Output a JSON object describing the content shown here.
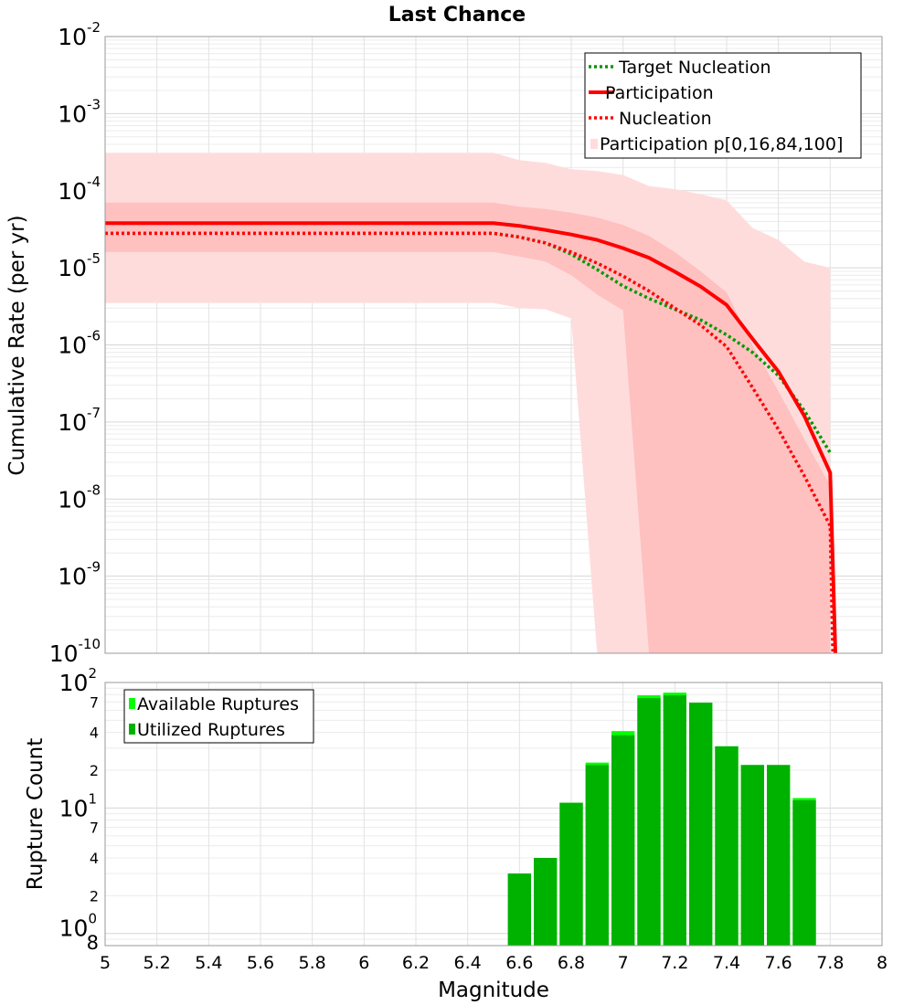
{
  "chart_data": [
    {
      "type": "line",
      "title": "Last Chance",
      "xlabel": "",
      "ylabel": "Cumulative Rate (per yr)",
      "xlim": [
        5,
        8
      ],
      "ylim": [
        1e-10,
        0.01
      ],
      "yscale": "log",
      "grid": true,
      "legend_position": "top-right",
      "y_tick_labels": [
        {
          "base": "10",
          "exp": "-2"
        },
        {
          "base": "10",
          "exp": "-3"
        },
        {
          "base": "10",
          "exp": "-4"
        },
        {
          "base": "10",
          "exp": "-5"
        },
        {
          "base": "10",
          "exp": "-6"
        },
        {
          "base": "10",
          "exp": "-7"
        },
        {
          "base": "10",
          "exp": "-8"
        },
        {
          "base": "10",
          "exp": "-9"
        },
        {
          "base": "10",
          "exp": "-10"
        }
      ],
      "legend": [
        "Target Nucleation",
        "Participation",
        "Nucleation",
        "Participation p[0,16,84,100]"
      ],
      "colors": {
        "target": "#009900",
        "participation": "#ff0000",
        "nucleation": "#ff0000",
        "band_outer": "#ffdcdc",
        "band_inner": "#ffc0c0"
      },
      "series": [
        {
          "name": "Target Nucleation",
          "style": "dotted",
          "x": [
            5.0,
            6.5,
            6.6,
            6.7,
            6.8,
            6.9,
            7.0,
            7.1,
            7.2,
            7.3,
            7.4,
            7.5,
            7.6,
            7.7,
            7.8
          ],
          "y": [
            2.8e-05,
            2.8e-05,
            2.5e-05,
            2.1e-05,
            1.5e-05,
            9.5e-06,
            5.8e-06,
            4e-06,
            2.9e-06,
            2.1e-06,
            1.35e-06,
            8e-07,
            4e-07,
            1.4e-07,
            4e-08
          ]
        },
        {
          "name": "Participation",
          "style": "solid",
          "x": [
            5.0,
            6.5,
            6.6,
            6.7,
            6.8,
            6.9,
            7.0,
            7.1,
            7.2,
            7.3,
            7.4,
            7.5,
            7.6,
            7.7,
            7.8,
            7.82
          ],
          "y": [
            3.8e-05,
            3.8e-05,
            3.5e-05,
            3.1e-05,
            2.7e-05,
            2.3e-05,
            1.8e-05,
            1.35e-05,
            8.9e-06,
            5.7e-06,
            3.3e-06,
            1.2e-06,
            4.5e-07,
            1.2e-07,
            2.2e-08,
            1e-10
          ]
        },
        {
          "name": "Nucleation",
          "style": "dotted",
          "x": [
            5.0,
            6.5,
            6.6,
            6.7,
            6.8,
            6.9,
            7.0,
            7.1,
            7.2,
            7.3,
            7.4,
            7.5,
            7.6,
            7.7,
            7.8,
            7.81
          ],
          "y": [
            2.8e-05,
            2.8e-05,
            2.5e-05,
            2.1e-05,
            1.6e-05,
            1.15e-05,
            7.8e-06,
            5e-06,
            3e-06,
            1.8e-06,
            9.5e-07,
            2.8e-07,
            8e-08,
            2e-08,
            4.5e-09,
            1e-10
          ]
        }
      ],
      "bands": [
        {
          "name": "Participation p[0,16,84,100]",
          "kind": "p0-p100",
          "x": [
            5.0,
            6.5,
            6.6,
            6.7,
            6.8,
            6.9,
            7.0,
            7.1,
            7.2,
            7.3,
            7.4,
            7.5,
            7.6,
            7.7,
            7.8
          ],
          "upper": [
            0.00031,
            0.00031,
            0.00025,
            0.00023,
            0.00019,
            0.00018,
            0.00016,
            0.000115,
            0.000105,
            9e-05,
            7.5e-05,
            3.3e-05,
            2.3e-05,
            1.2e-05,
            1e-05
          ],
          "lower": [
            3.5e-06,
            3.5e-06,
            3e-06,
            2.9e-06,
            2.2e-06,
            1e-10,
            1e-10,
            1e-10,
            1e-10,
            1e-10,
            1e-10,
            1e-10,
            1e-10,
            1e-10,
            1e-10
          ]
        },
        {
          "name": "Participation p[0,16,84,100]",
          "kind": "p16-p84",
          "x": [
            5.0,
            6.5,
            6.6,
            6.7,
            6.8,
            6.9,
            7.0,
            7.1,
            7.2,
            7.3,
            7.4,
            7.5,
            7.6,
            7.7,
            7.8
          ],
          "upper": [
            7e-05,
            7e-05,
            6.2e-05,
            5.8e-05,
            5.2e-05,
            4.5e-05,
            3.6e-05,
            2.6e-05,
            1.6e-05,
            9e-06,
            4.8e-06,
            1e-06,
            2.5e-07,
            6e-08,
            1.5e-08
          ],
          "lower": [
            1.6e-05,
            1.6e-05,
            1.4e-05,
            1.2e-05,
            8e-06,
            4.5e-06,
            2.8e-06,
            1e-10,
            1e-10,
            1e-10,
            1e-10,
            1e-10,
            1e-10,
            1e-10,
            1e-10
          ]
        }
      ]
    },
    {
      "type": "bar",
      "title": "",
      "xlabel": "Magnitude",
      "ylabel": "Rupture Count",
      "xlim": [
        5,
        8
      ],
      "ylim": [
        0.8,
        100
      ],
      "yscale": "log",
      "grid": true,
      "legend_position": "top-left",
      "x_tick_labels": [
        "5",
        "5.2",
        "5.4",
        "5.6",
        "5.8",
        "6",
        "6.2",
        "6.4",
        "6.6",
        "6.8",
        "7",
        "7.2",
        "7.4",
        "7.6",
        "7.8",
        "8"
      ],
      "y_tick_labels": [
        {
          "value": 100,
          "base": "10",
          "exp": "2"
        },
        {
          "value": 10,
          "base": "10",
          "exp": "1"
        },
        {
          "value": 1,
          "base": "10",
          "exp": "0"
        }
      ],
      "y_minor_labels": [
        {
          "value": 70,
          "label": "7"
        },
        {
          "value": 40,
          "label": "4"
        },
        {
          "value": 20,
          "label": "2"
        },
        {
          "value": 7,
          "label": "7"
        },
        {
          "value": 4,
          "label": "4"
        },
        {
          "value": 2,
          "label": "2"
        },
        {
          "value": 0.8,
          "label": "8"
        }
      ],
      "legend": [
        "Available Ruptures",
        "Utilized Ruptures"
      ],
      "colors": {
        "available": "#00ff00",
        "utilized": "#00b200"
      },
      "bin_width": 0.1,
      "x": [
        6.6,
        6.7,
        6.8,
        6.9,
        7.0,
        7.1,
        7.2,
        7.3,
        7.4,
        7.5,
        7.6,
        7.7
      ],
      "series": [
        {
          "name": "Available Ruptures",
          "values": [
            3,
            4,
            11,
            23,
            41,
            79,
            83,
            69,
            31,
            22,
            22,
            12
          ]
        },
        {
          "name": "Utilized Ruptures",
          "values": [
            3,
            4,
            11,
            22,
            38,
            75,
            79,
            69,
            31,
            22,
            22,
            11.5
          ]
        }
      ]
    }
  ]
}
